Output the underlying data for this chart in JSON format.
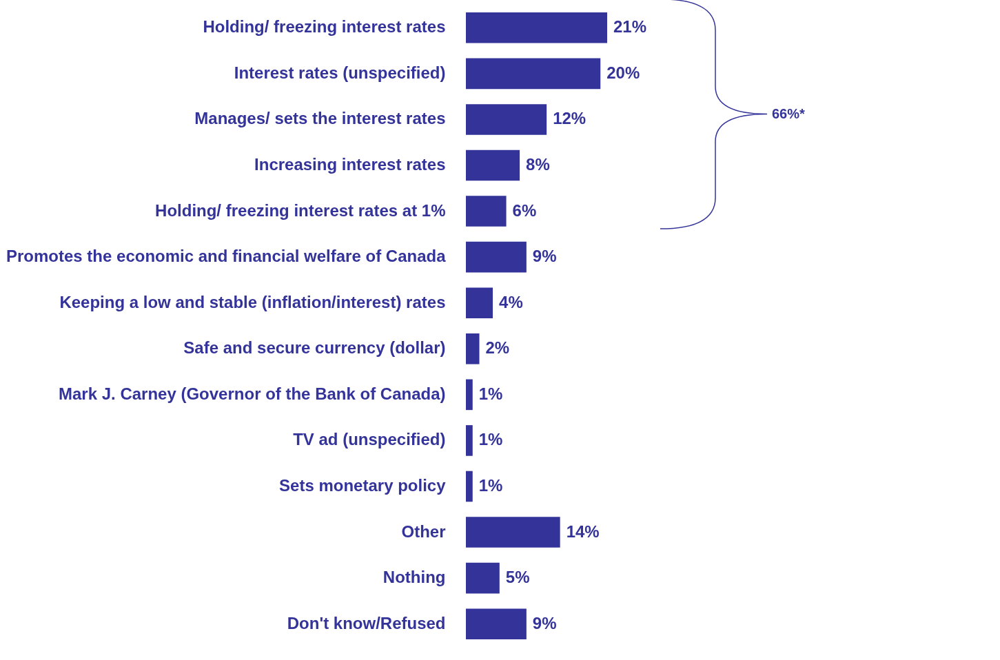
{
  "chart_data": {
    "type": "bar",
    "orientation": "horizontal",
    "categories": [
      "Holding/ freezing interest rates",
      "Interest rates (unspecified)",
      "Manages/ sets the interest rates",
      "Increasing interest rates",
      "Holding/ freezing interest rates at 1%",
      "Promotes the economic and financial welfare of Canada",
      "Keeping a low and stable (inflation/interest) rates",
      "Safe and secure currency (dollar)",
      "Mark J. Carney (Governor of the Bank of Canada)",
      "TV ad (unspecified)",
      "Sets monetary policy",
      "Other",
      "Nothing",
      "Don't know/Refused"
    ],
    "values": [
      21,
      20,
      12,
      8,
      6,
      9,
      4,
      2,
      1,
      1,
      1,
      14,
      5,
      9
    ],
    "value_labels": [
      "21%",
      "20%",
      "12%",
      "8%",
      "6%",
      "9%",
      "4%",
      "2%",
      "1%",
      "1%",
      "1%",
      "14%",
      "5%",
      "9%"
    ],
    "color": "#333399",
    "annotations": [
      "66%*"
    ]
  }
}
